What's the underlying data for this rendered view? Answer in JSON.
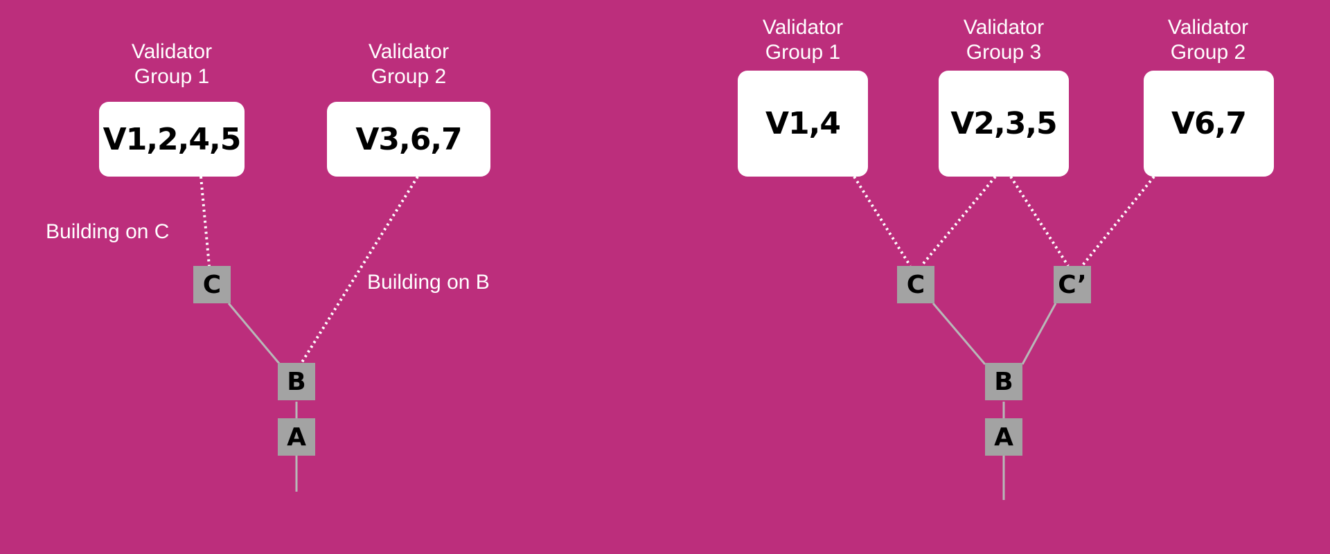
{
  "left_diagram": {
    "groups": [
      {
        "label": "Validator\nGroup 1",
        "validators": "V1,2,4,5"
      },
      {
        "label": "Validator\nGroup 2",
        "validators": "V3,6,7"
      }
    ],
    "annotations": {
      "building_on_c": "Building on C",
      "building_on_b": "Building on B"
    },
    "blocks": {
      "c": "C",
      "b": "B",
      "a": "A"
    }
  },
  "right_diagram": {
    "groups": [
      {
        "label": "Validator\nGroup 1",
        "validators": "V1,4"
      },
      {
        "label": "Validator\nGroup 3",
        "validators": "V2,3,5"
      },
      {
        "label": "Validator\nGroup 2",
        "validators": "V6,7"
      }
    ],
    "blocks": {
      "c": "C",
      "c_prime": "C’",
      "b": "B",
      "a": "A"
    }
  },
  "colors": {
    "background": "#BC2E7C",
    "box": "#FFFFFF",
    "block": "#A3A3A3",
    "chain_line": "#B8B8B8",
    "text_light": "#FFFFFF",
    "text_dark": "#000000"
  }
}
